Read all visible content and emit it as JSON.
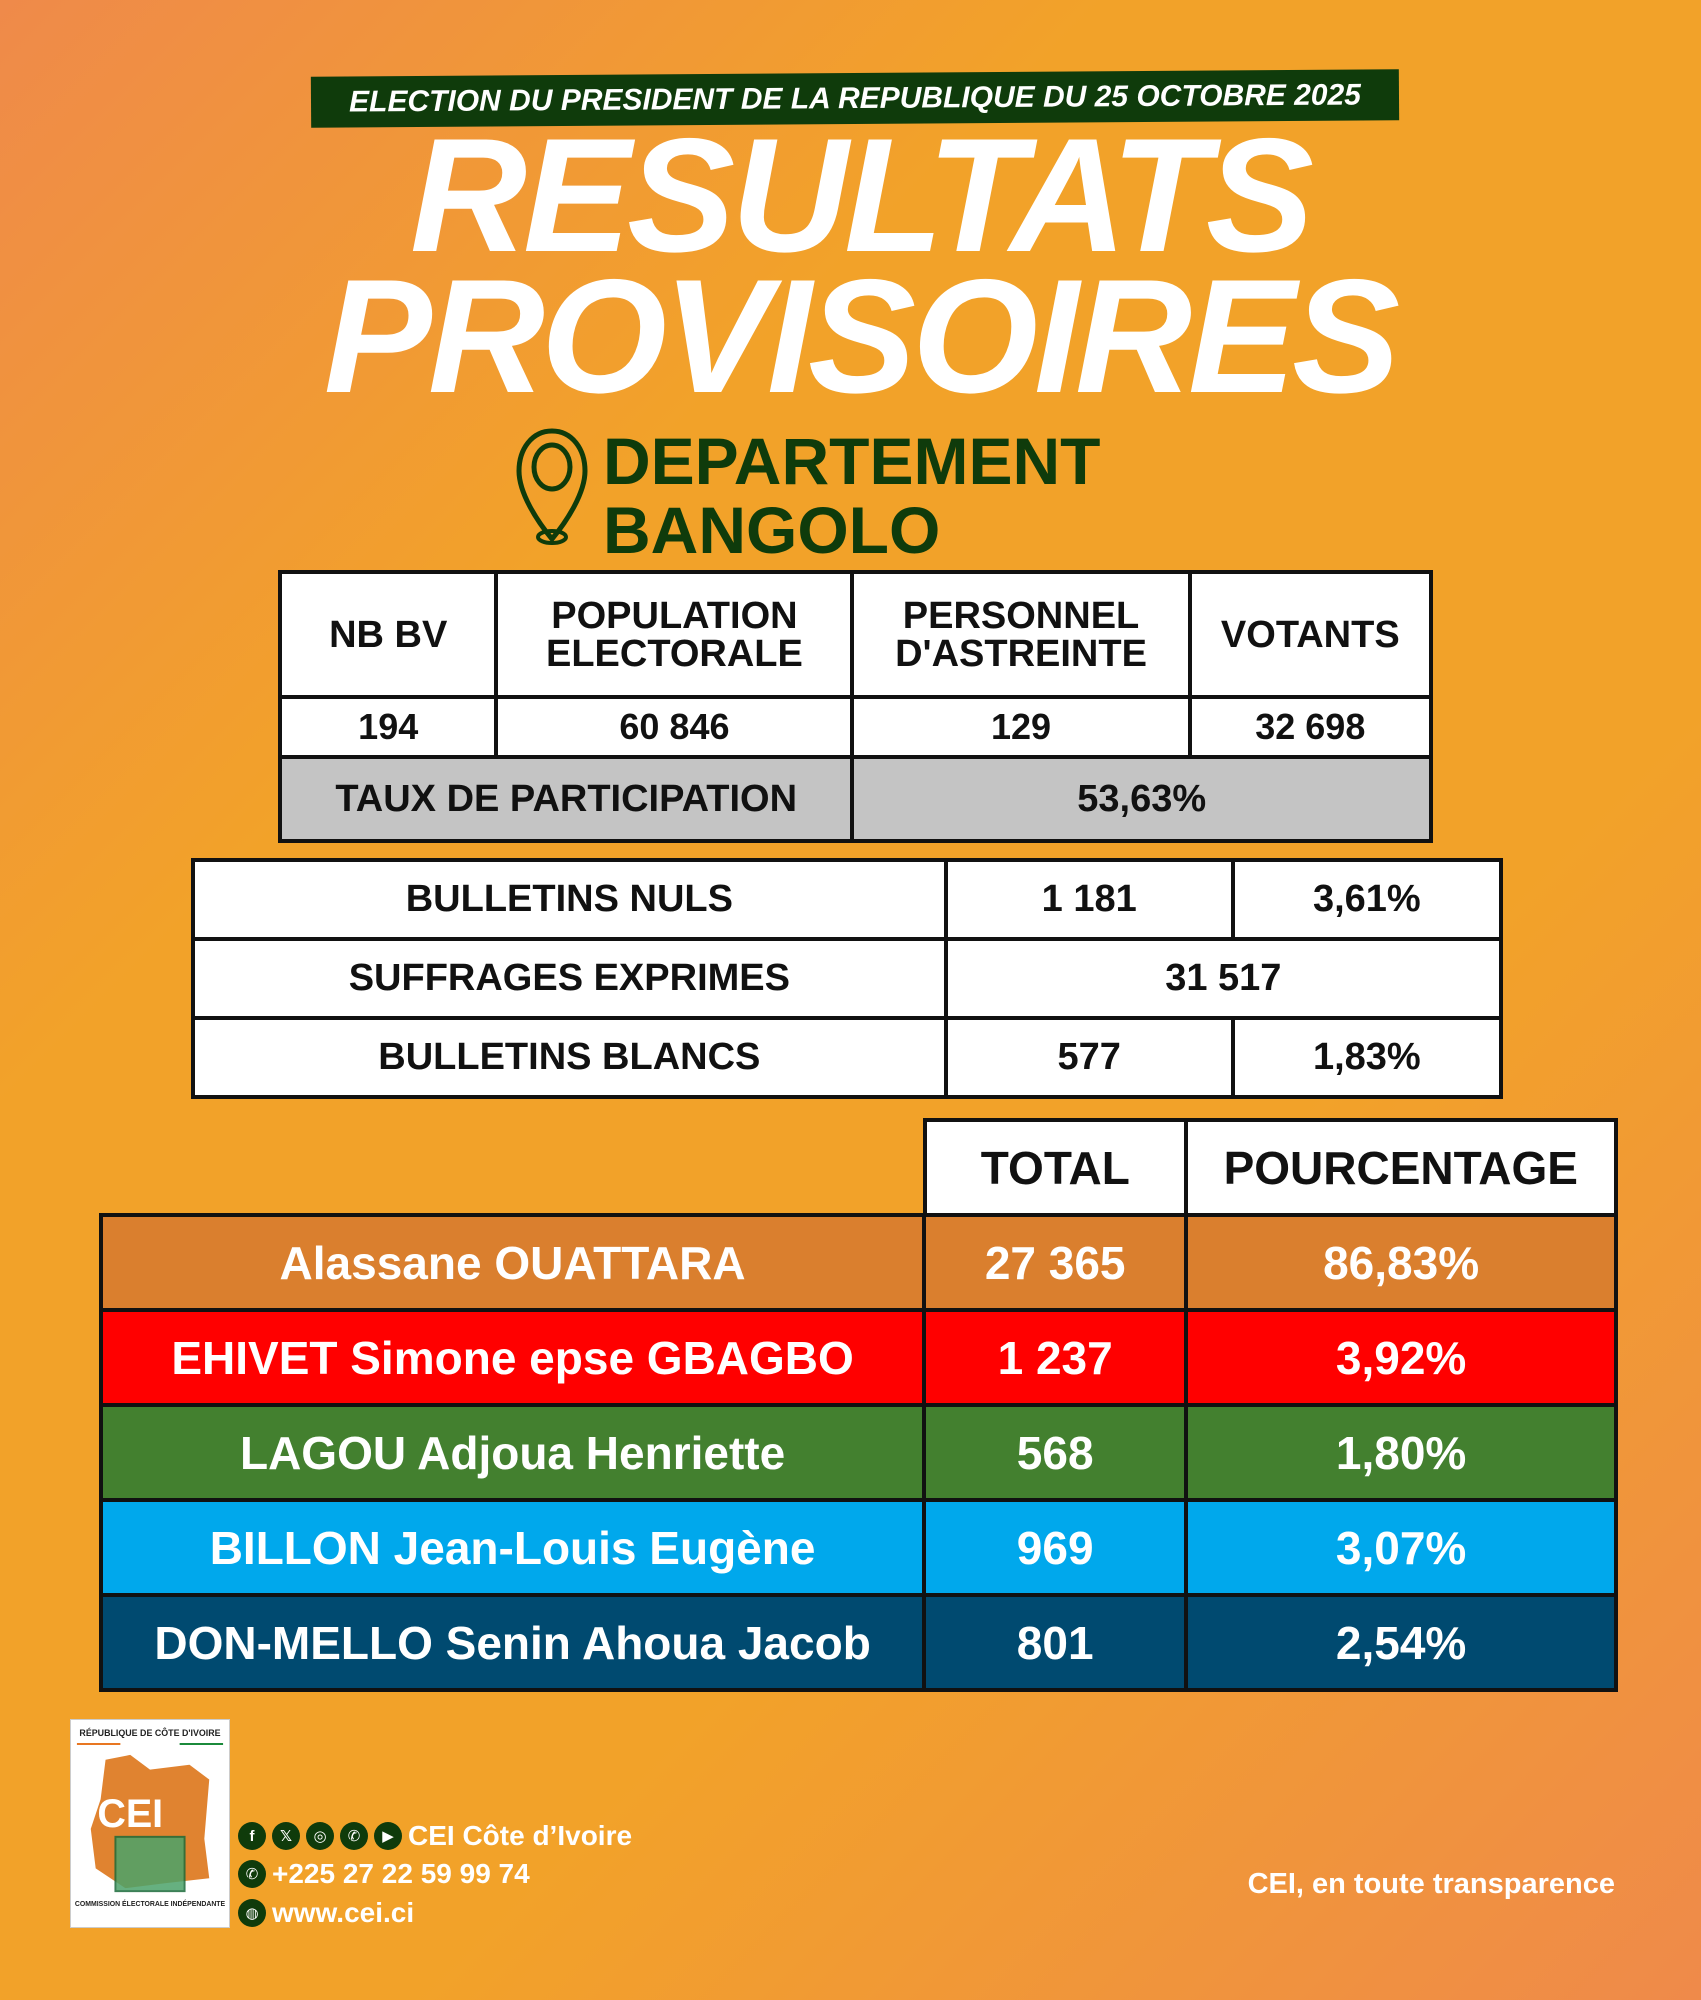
{
  "banner": "ELECTION DU PRESIDENT DE LA REPUBLIQUE DU 25 OCTOBRE 2025",
  "title_line1": "RESULTATS",
  "title_line2": "PROVISOIRES",
  "location": {
    "icon": "map-pin-icon",
    "line1": "DEPARTEMENT",
    "line2": "BANGOLO"
  },
  "stats": {
    "headers": [
      "NB BV",
      "POPULATION ELECTORALE",
      "PERSONNEL D'ASTREINTE",
      "VOTANTS"
    ],
    "values": [
      "194",
      "60 846",
      "129",
      "32 698"
    ],
    "participation_label": "TAUX DE PARTICIPATION",
    "participation_value": "53,63%"
  },
  "ballots": {
    "nuls_label": "BULLETINS NULS",
    "nuls_count": "1 181",
    "nuls_pct": "3,61%",
    "exprimes_label": "SUFFRAGES EXPRIMES",
    "exprimes_count": "31 517",
    "blancs_label": "BULLETINS BLANCS",
    "blancs_count": "577",
    "blancs_pct": "1,83%"
  },
  "results": {
    "headers": [
      "TOTAL",
      "POURCENTAGE"
    ],
    "candidates": [
      {
        "name": "Alassane OUATTARA",
        "total": "27 365",
        "pct": "86,83%",
        "color": "#DA7F2E"
      },
      {
        "name": "EHIVET Simone epse GBAGBO",
        "total": "1 237",
        "pct": "3,92%",
        "color": "#FF0000"
      },
      {
        "name": "LAGOU Adjoua Henriette",
        "total": "568",
        "pct": "1,80%",
        "color": "#43802F"
      },
      {
        "name": "BILLON Jean-Louis Eugène",
        "total": "969",
        "pct": "3,07%",
        "color": "#00A8EC"
      },
      {
        "name": "DON-MELLO Senin Ahoua Jacob",
        "total": "801",
        "pct": "2,54%",
        "color": "#004A70"
      }
    ]
  },
  "footer": {
    "logo": {
      "top": "RÉPUBLIQUE DE CÔTE D'IVOIRE",
      "acronym": "CEI",
      "bottom": "COMMISSION ÉLECTORALE INDÉPENDANTE"
    },
    "social_icons": [
      "facebook-icon",
      "x-icon",
      "instagram-icon",
      "whatsapp-icon",
      "youtube-icon"
    ],
    "social_label": "CEI Côte d’Ivoire",
    "phone": "+225 27 22 59 99 74",
    "website": "www.cei.ci",
    "tagline": "CEI, en toute transparence"
  }
}
